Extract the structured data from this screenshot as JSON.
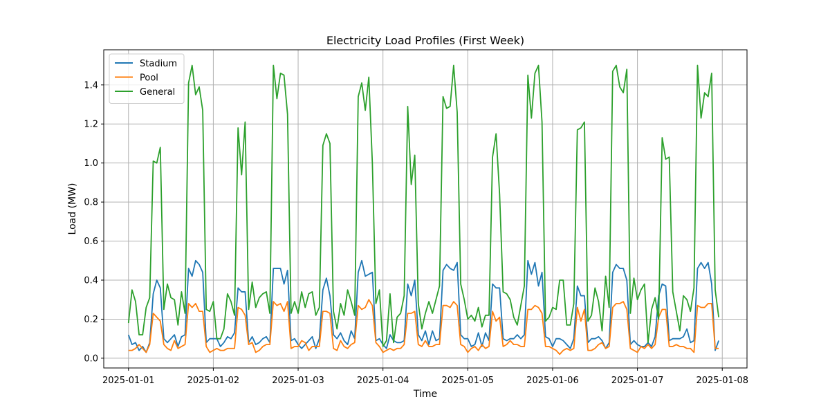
{
  "chart_data": {
    "type": "line",
    "title": "Electricity Load Profiles (First Week)",
    "xlabel": "Time",
    "ylabel": "Load (MW)",
    "x_start": "2025-01-01 00:00",
    "x_step_hours": 1,
    "xlim": [
      "2024-12-31 17:00",
      "2025-01-08 07:00"
    ],
    "ylim": [
      -0.05,
      1.58
    ],
    "xticks": [
      "2025-01-01",
      "2025-01-02",
      "2025-01-03",
      "2025-01-04",
      "2025-01-05",
      "2025-01-06",
      "2025-01-07",
      "2025-01-08"
    ],
    "yticks": [
      0.0,
      0.2,
      0.4,
      0.6,
      0.8,
      1.0,
      1.2,
      1.4
    ],
    "ytick_labels": [
      "0.0",
      "0.2",
      "0.4",
      "0.6",
      "0.8",
      "1.0",
      "1.2",
      "1.4"
    ],
    "grid": true,
    "legend_position": "top-left",
    "series": [
      {
        "name": "Stadium",
        "color": "#1f77b4",
        "values": [
          0.12,
          0.07,
          0.08,
          0.04,
          0.06,
          0.03,
          0.08,
          0.33,
          0.4,
          0.36,
          0.1,
          0.08,
          0.1,
          0.12,
          0.06,
          0.11,
          0.12,
          0.46,
          0.42,
          0.5,
          0.48,
          0.44,
          0.08,
          0.1,
          0.1,
          0.1,
          0.06,
          0.08,
          0.11,
          0.1,
          0.13,
          0.36,
          0.34,
          0.34,
          0.08,
          0.11,
          0.07,
          0.08,
          0.1,
          0.11,
          0.08,
          0.46,
          0.46,
          0.46,
          0.38,
          0.45,
          0.09,
          0.1,
          0.07,
          0.05,
          0.07,
          0.09,
          0.11,
          0.05,
          0.1,
          0.35,
          0.41,
          0.32,
          0.12,
          0.1,
          0.13,
          0.09,
          0.07,
          0.14,
          0.1,
          0.44,
          0.5,
          0.42,
          0.43,
          0.44,
          0.09,
          0.1,
          0.07,
          0.05,
          0.12,
          0.09,
          0.08,
          0.08,
          0.09,
          0.38,
          0.32,
          0.4,
          0.12,
          0.09,
          0.14,
          0.07,
          0.14,
          0.09,
          0.1,
          0.45,
          0.48,
          0.46,
          0.45,
          0.49,
          0.12,
          0.1,
          0.1,
          0.06,
          0.07,
          0.13,
          0.06,
          0.13,
          0.09,
          0.38,
          0.36,
          0.36,
          0.1,
          0.09,
          0.1,
          0.1,
          0.12,
          0.1,
          0.12,
          0.5,
          0.43,
          0.49,
          0.37,
          0.44,
          0.11,
          0.1,
          0.06,
          0.1,
          0.1,
          0.09,
          0.07,
          0.05,
          0.1,
          0.37,
          0.32,
          0.32,
          0.08,
          0.1,
          0.1,
          0.11,
          0.09,
          0.05,
          0.08,
          0.44,
          0.48,
          0.46,
          0.46,
          0.4,
          0.07,
          0.09,
          0.07,
          0.06,
          0.06,
          0.08,
          0.06,
          0.11,
          0.32,
          0.38,
          0.37,
          0.09,
          0.1,
          0.1,
          0.1,
          0.11,
          0.15,
          0.08,
          0.09,
          0.46,
          0.49,
          0.46,
          0.49,
          0.38,
          0.04,
          0.09
        ]
      },
      {
        "name": "Pool",
        "color": "#ff7f0e",
        "values": [
          0.04,
          0.04,
          0.05,
          0.07,
          0.05,
          0.03,
          0.07,
          0.23,
          0.21,
          0.19,
          0.07,
          0.05,
          0.04,
          0.09,
          0.05,
          0.06,
          0.07,
          0.28,
          0.26,
          0.28,
          0.24,
          0.24,
          0.06,
          0.03,
          0.04,
          0.05,
          0.04,
          0.04,
          0.05,
          0.05,
          0.05,
          0.26,
          0.25,
          0.22,
          0.07,
          0.08,
          0.03,
          0.04,
          0.06,
          0.07,
          0.07,
          0.29,
          0.27,
          0.28,
          0.24,
          0.29,
          0.05,
          0.06,
          0.06,
          0.09,
          0.08,
          0.04,
          0.06,
          0.06,
          0.06,
          0.24,
          0.24,
          0.23,
          0.05,
          0.04,
          0.09,
          0.06,
          0.05,
          0.07,
          0.08,
          0.27,
          0.25,
          0.26,
          0.3,
          0.27,
          0.08,
          0.06,
          0.03,
          0.04,
          0.05,
          0.04,
          0.05,
          0.05,
          0.07,
          0.23,
          0.23,
          0.24,
          0.07,
          0.06,
          0.09,
          0.06,
          0.06,
          0.07,
          0.07,
          0.27,
          0.27,
          0.26,
          0.29,
          0.27,
          0.07,
          0.06,
          0.03,
          0.05,
          0.06,
          0.04,
          0.07,
          0.05,
          0.06,
          0.24,
          0.19,
          0.21,
          0.06,
          0.07,
          0.09,
          0.07,
          0.07,
          0.06,
          0.06,
          0.25,
          0.25,
          0.27,
          0.26,
          0.23,
          0.06,
          0.06,
          0.05,
          0.04,
          0.02,
          0.04,
          0.05,
          0.04,
          0.05,
          0.26,
          0.19,
          0.25,
          0.04,
          0.04,
          0.05,
          0.07,
          0.08,
          0.05,
          0.06,
          0.26,
          0.28,
          0.28,
          0.29,
          0.25,
          0.05,
          0.04,
          0.03,
          0.06,
          0.05,
          0.07,
          0.05,
          0.07,
          0.21,
          0.25,
          0.25,
          0.06,
          0.06,
          0.07,
          0.06,
          0.06,
          0.05,
          0.05,
          0.03,
          0.27,
          0.26,
          0.26,
          0.28,
          0.28,
          0.05,
          0.05
        ]
      },
      {
        "name": "General",
        "color": "#2ca02c",
        "values": [
          0.18,
          0.35,
          0.29,
          0.12,
          0.12,
          0.26,
          0.31,
          1.01,
          1.0,
          1.08,
          0.25,
          0.38,
          0.31,
          0.3,
          0.17,
          0.34,
          0.23,
          1.41,
          1.5,
          1.35,
          1.39,
          1.27,
          0.25,
          0.24,
          0.29,
          0.1,
          0.1,
          0.15,
          0.33,
          0.29,
          0.22,
          1.18,
          0.94,
          1.21,
          0.25,
          0.39,
          0.26,
          0.31,
          0.33,
          0.34,
          0.23,
          1.5,
          1.33,
          1.46,
          1.45,
          1.25,
          0.23,
          0.29,
          0.23,
          0.34,
          0.26,
          0.33,
          0.34,
          0.22,
          0.26,
          1.09,
          1.15,
          1.1,
          0.24,
          0.15,
          0.28,
          0.22,
          0.35,
          0.29,
          0.22,
          1.34,
          1.41,
          1.27,
          1.44,
          1.0,
          0.28,
          0.35,
          0.06,
          0.09,
          0.33,
          0.08,
          0.21,
          0.23,
          0.32,
          1.29,
          0.89,
          1.04,
          0.28,
          0.15,
          0.23,
          0.29,
          0.23,
          0.3,
          0.37,
          1.34,
          1.28,
          1.29,
          1.5,
          1.26,
          0.38,
          0.3,
          0.2,
          0.22,
          0.19,
          0.26,
          0.16,
          0.22,
          0.22,
          1.03,
          1.15,
          0.84,
          0.34,
          0.33,
          0.3,
          0.21,
          0.17,
          0.27,
          0.37,
          1.45,
          1.23,
          1.46,
          1.5,
          1.21,
          0.19,
          0.21,
          0.26,
          0.25,
          0.4,
          0.4,
          0.17,
          0.17,
          0.28,
          1.17,
          1.18,
          1.21,
          0.19,
          0.22,
          0.36,
          0.29,
          0.14,
          0.42,
          0.26,
          1.47,
          1.5,
          1.39,
          1.36,
          1.48,
          0.23,
          0.41,
          0.3,
          0.35,
          0.38,
          0.08,
          0.25,
          0.31,
          0.2,
          1.13,
          1.02,
          1.03,
          0.34,
          0.24,
          0.14,
          0.32,
          0.3,
          0.24,
          0.36,
          1.5,
          1.23,
          1.36,
          1.34,
          1.46,
          0.35,
          0.21
        ]
      }
    ]
  }
}
